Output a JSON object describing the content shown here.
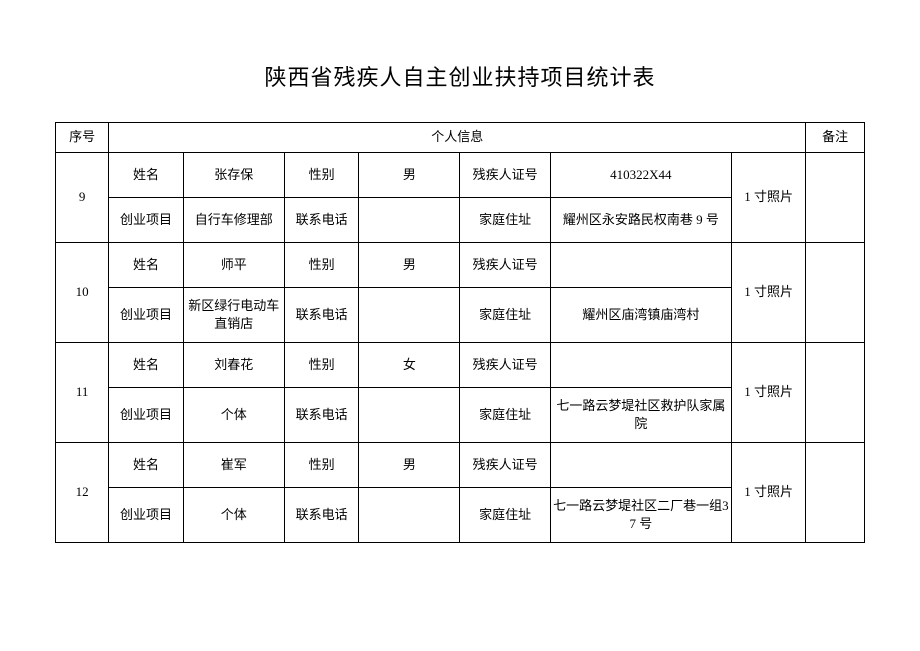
{
  "title": "陕西省残疾人自主创业扶持项目统计表",
  "headers": {
    "seq": "序号",
    "info": "个人信息",
    "remark": "备注"
  },
  "labels": {
    "name": "姓名",
    "gender": "性别",
    "cert": "残疾人证号",
    "project": "创业项目",
    "phone": "联系电话",
    "address": "家庭住址",
    "photo": "1 寸照片"
  },
  "rows": [
    {
      "seq": "9",
      "name": "张存保",
      "gender": "男",
      "cert": "410322X44",
      "project": "自行车修理部",
      "phone": "",
      "address": "耀州区永安路民权南巷 9 号",
      "remark": ""
    },
    {
      "seq": "10",
      "name": "师平",
      "gender": "男",
      "cert": "",
      "project": "新区绿行电动车直销店",
      "phone": "",
      "address": "耀州区庙湾镇庙湾村",
      "remark": ""
    },
    {
      "seq": "11",
      "name": "刘春花",
      "gender": "女",
      "cert": "",
      "project": "个体",
      "phone": "",
      "address": "七一路云梦堤社区救护队家属院",
      "remark": ""
    },
    {
      "seq": "12",
      "name": "崔军",
      "gender": "男",
      "cert": "",
      "project": "个体",
      "phone": "",
      "address": "七一路云梦堤社区二厂巷一组37 号",
      "remark": ""
    }
  ]
}
